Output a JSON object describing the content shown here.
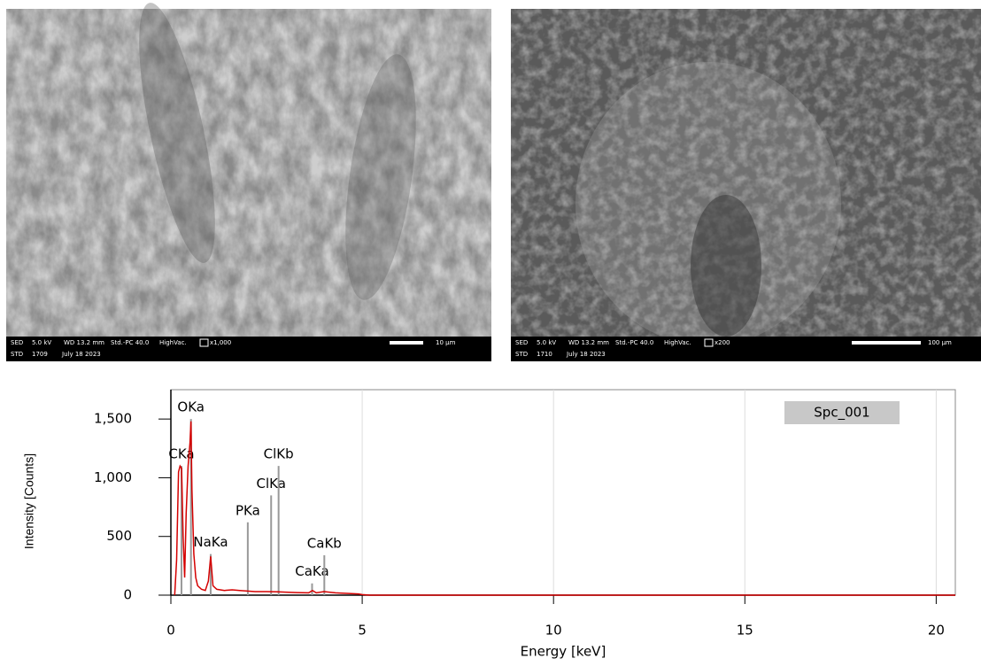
{
  "images": [
    {
      "row1": [
        "SED",
        "5.0 kV",
        "WD 13.2 mm",
        "Std.-PC 40.0",
        "HighVac.",
        "x1,000"
      ],
      "row2": [
        "STD",
        "1709",
        "July 18 2023"
      ],
      "scale": "10 µm"
    },
    {
      "row1": [
        "SED",
        "5.0 kV",
        "WD 13.2 mm",
        "Std.-PC 40.0",
        "HighVac.",
        "x200"
      ],
      "row2": [
        "STD",
        "1710",
        "July 18 2023"
      ],
      "scale": "100 µm"
    }
  ],
  "chart_data": {
    "type": "line",
    "x_label": "Energy [keV]",
    "y_label": "Intensity [Counts]",
    "legend": "Spc_001",
    "xlim": [
      0,
      20.5
    ],
    "xticks": [
      0,
      5,
      10,
      15,
      20
    ],
    "ylim": [
      0,
      1750
    ],
    "yticks": [
      0,
      500,
      {
        "value": 1000,
        "label": "1,000"
      },
      {
        "value": 1500,
        "label": "1,500"
      }
    ],
    "grid": true,
    "series": [
      {
        "color": "#d40000",
        "x": [
          0.1,
          0.15,
          0.2,
          0.24,
          0.28,
          0.32,
          0.36,
          0.4,
          0.45,
          0.5,
          0.525,
          0.55,
          0.6,
          0.65,
          0.7,
          0.8,
          0.9,
          0.98,
          1.04,
          1.1,
          1.2,
          1.4,
          1.6,
          1.8,
          2.0,
          2.2,
          2.5,
          2.8,
          3.0,
          3.3,
          3.6,
          3.7,
          3.8,
          4.0,
          4.3,
          4.6,
          4.9,
          5.0,
          5.2,
          20.5
        ],
        "values": [
          0,
          300,
          1050,
          1100,
          1080,
          500,
          150,
          700,
          1100,
          1300,
          1480,
          900,
          350,
          150,
          80,
          50,
          40,
          120,
          330,
          80,
          50,
          40,
          45,
          40,
          35,
          30,
          30,
          28,
          25,
          22,
          20,
          40,
          20,
          30,
          20,
          15,
          10,
          5,
          0,
          0
        ]
      }
    ],
    "peaks": [
      {
        "label": "OKa",
        "energy": 0.525,
        "height": 1500
      },
      {
        "label": "CKa",
        "energy": 0.277,
        "height": 1100
      },
      {
        "label": "NaKa",
        "energy": 1.04,
        "height": 350
      },
      {
        "label": "PKa",
        "energy": 2.01,
        "height": 620
      },
      {
        "label": "ClKa",
        "energy": 2.62,
        "height": 850
      },
      {
        "label": "ClKb",
        "energy": 2.815,
        "height": 1100
      },
      {
        "label": "CaKa",
        "energy": 3.69,
        "height": 100
      },
      {
        "label": "CaKb",
        "energy": 4.01,
        "height": 340
      }
    ]
  }
}
